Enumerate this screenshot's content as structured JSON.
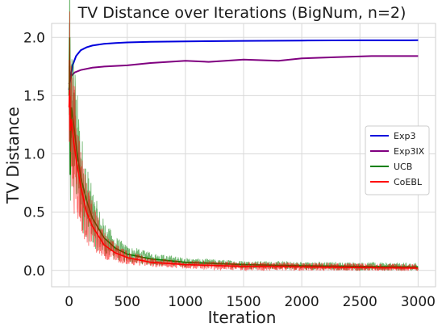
{
  "chart_data": {
    "type": "line",
    "title": "TV Distance over Iterations (BigNum, n=2)",
    "xlabel": "Iteration",
    "ylabel": "TV Distance",
    "xlim": [
      -150,
      3150
    ],
    "ylim": [
      -0.14,
      2.12
    ],
    "xticks": [
      0,
      500,
      1000,
      1500,
      2000,
      2500,
      3000
    ],
    "yticks": [
      0.0,
      0.5,
      1.0,
      1.5,
      2.0
    ],
    "xtick_labels": [
      "0",
      "500",
      "1000",
      "1500",
      "2000",
      "2500",
      "3000"
    ],
    "ytick_labels": [
      "0.0",
      "0.5",
      "1.0",
      "1.5",
      "2.0"
    ],
    "grid": true,
    "legend_position": "center-right",
    "series": [
      {
        "name": "Exp3",
        "color": "#0000dd",
        "x": [
          0,
          10,
          30,
          60,
          100,
          150,
          200,
          300,
          400,
          500,
          700,
          1000,
          1500,
          2000,
          2500,
          3000
        ],
        "y": [
          1.55,
          1.64,
          1.76,
          1.84,
          1.89,
          1.915,
          1.93,
          1.945,
          1.952,
          1.957,
          1.962,
          1.966,
          1.97,
          1.973,
          1.975,
          1.976
        ]
      },
      {
        "name": "Exp3IX",
        "color": "#800080",
        "x": [
          0,
          20,
          50,
          100,
          200,
          300,
          500,
          700,
          1000,
          1200,
          1500,
          1800,
          2000,
          2300,
          2600,
          2800,
          3000
        ],
        "y": [
          1.6,
          1.67,
          1.7,
          1.72,
          1.74,
          1.75,
          1.76,
          1.78,
          1.8,
          1.79,
          1.81,
          1.8,
          1.82,
          1.83,
          1.84,
          1.84,
          1.84
        ]
      },
      {
        "name": "UCB",
        "color": "#008000",
        "x": [
          0,
          5,
          10,
          20,
          40,
          70,
          100,
          150,
          200,
          300,
          400,
          500,
          700,
          1000,
          1500,
          2000,
          2500,
          3000
        ],
        "y": [
          1.5,
          2.0,
          0.82,
          1.4,
          1.25,
          1.0,
          0.8,
          0.6,
          0.45,
          0.28,
          0.19,
          0.14,
          0.1,
          0.07,
          0.05,
          0.04,
          0.035,
          0.03
        ]
      },
      {
        "name": "CoEBL",
        "color": "#ff0000",
        "x": [
          0,
          5,
          10,
          20,
          40,
          70,
          100,
          150,
          200,
          300,
          400,
          500,
          700,
          1000,
          1500,
          2000,
          2500,
          3000
        ],
        "y": [
          1.4,
          1.55,
          1.2,
          1.3,
          1.1,
          0.9,
          0.72,
          0.5,
          0.38,
          0.22,
          0.15,
          0.11,
          0.07,
          0.05,
          0.035,
          0.03,
          0.025,
          0.02
        ]
      }
    ]
  }
}
